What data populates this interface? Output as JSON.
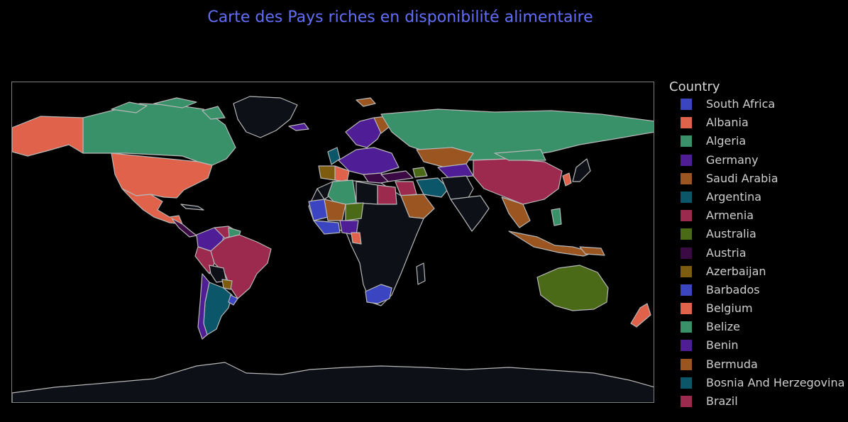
{
  "title": "Carte des Pays riches en disponibilité alimentaire",
  "legend": {
    "title": "Country",
    "items": [
      {
        "label": "South Africa",
        "color": "#3b45c1"
      },
      {
        "label": "Albania",
        "color": "#e0624a"
      },
      {
        "label": "Algeria",
        "color": "#39916a"
      },
      {
        "label": "Germany",
        "color": "#4f1d96"
      },
      {
        "label": "Saudi Arabia",
        "color": "#9a5520"
      },
      {
        "label": "Argentina",
        "color": "#0b5668"
      },
      {
        "label": "Armenia",
        "color": "#9c2a4f"
      },
      {
        "label": "Australia",
        "color": "#4a6a17"
      },
      {
        "label": "Austria",
        "color": "#3b0a45"
      },
      {
        "label": "Azerbaijan",
        "color": "#7d5b0f"
      },
      {
        "label": "Barbados",
        "color": "#3b45c1"
      },
      {
        "label": "Belgium",
        "color": "#e0624a"
      },
      {
        "label": "Belize",
        "color": "#39916a"
      },
      {
        "label": "Benin",
        "color": "#4f1d96"
      },
      {
        "label": "Bermuda",
        "color": "#9a5520"
      },
      {
        "label": "Bosnia And Herzegovina",
        "color": "#0b5668"
      },
      {
        "label": "Brazil",
        "color": "#9c2a4f"
      }
    ]
  },
  "map_colors": {
    "background": "#000000",
    "unhighlighted_land": "#0d1117",
    "border": "#b7b7b7"
  }
}
